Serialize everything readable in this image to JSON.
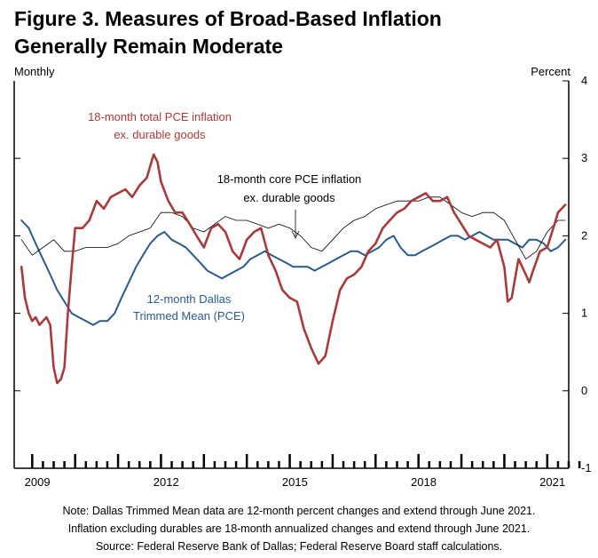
{
  "title_line1": "Figure 3. Measures of Broad-Based Inflation",
  "title_line2": "Generally Remain Moderate",
  "notes": [
    "Note:  Dallas Trimmed Mean data are 12-month percent changes and extend through June 2021.",
    "Inflation excluding durables are 18-month annualized changes and extend through June 2021.",
    "Source:  Federal Reserve Bank of Dallas; Federal Reserve Board staff calculations."
  ],
  "colors": {
    "total": "#a83a3a",
    "core": "#000000",
    "dallas": "#2a5a8a"
  },
  "chart_data": {
    "type": "line",
    "title": "Figure 3. Measures of Broad-Based Inflation Generally Remain Moderate",
    "left_label": "Monthly",
    "right_label": "Percent",
    "xlim": [
      2008.58,
      2021.5
    ],
    "ylim": [
      -1,
      4
    ],
    "yticks": [
      -1,
      0,
      1,
      2,
      3,
      4
    ],
    "ytick_labels": [
      "-1",
      "0",
      "1",
      "2",
      "3",
      "4"
    ],
    "xticks": [
      2009,
      2012,
      2015,
      2018,
      2021
    ],
    "xtick_labels": [
      "2009",
      "2012",
      "2015",
      "2018",
      "2021"
    ],
    "annotations": {
      "total": [
        "18-month total PCE inflation",
        "ex. durable goods"
      ],
      "core": [
        "18-month core PCE inflation",
        "ex. durable goods"
      ],
      "dallas": [
        "12-month Dallas",
        "Trimmed Mean (PCE)"
      ]
    },
    "series": [
      {
        "name": "18-month total PCE inflation ex. durable goods",
        "key": "total",
        "x": [
          2008.75,
          2008.83,
          2008.92,
          2009.0,
          2009.08,
          2009.17,
          2009.25,
          2009.33,
          2009.42,
          2009.5,
          2009.58,
          2009.67,
          2009.75,
          2009.83,
          2009.92,
          2010.0,
          2010.17,
          2010.33,
          2010.5,
          2010.67,
          2010.83,
          2011.0,
          2011.17,
          2011.33,
          2011.5,
          2011.67,
          2011.83,
          2011.92,
          2012.0,
          2012.17,
          2012.33,
          2012.5,
          2012.67,
          2012.83,
          2013.0,
          2013.17,
          2013.33,
          2013.5,
          2013.67,
          2013.83,
          2014.0,
          2014.17,
          2014.33,
          2014.5,
          2014.67,
          2014.83,
          2015.0,
          2015.17,
          2015.33,
          2015.5,
          2015.67,
          2015.83,
          2016.0,
          2016.17,
          2016.33,
          2016.5,
          2016.67,
          2016.83,
          2017.0,
          2017.17,
          2017.33,
          2017.5,
          2017.67,
          2017.83,
          2018.0,
          2018.17,
          2018.33,
          2018.5,
          2018.67,
          2018.83,
          2019.0,
          2019.17,
          2019.33,
          2019.5,
          2019.67,
          2019.83,
          2020.0,
          2020.08,
          2020.17,
          2020.33,
          2020.5,
          2020.58,
          2020.67,
          2020.83,
          2021.0,
          2021.17,
          2021.25,
          2021.42
        ],
        "y": [
          1.6,
          1.2,
          1.0,
          0.9,
          0.95,
          0.85,
          0.9,
          0.95,
          0.85,
          0.3,
          0.1,
          0.15,
          0.3,
          1.0,
          1.6,
          2.1,
          2.1,
          2.2,
          2.45,
          2.35,
          2.5,
          2.55,
          2.6,
          2.5,
          2.65,
          2.75,
          3.05,
          2.95,
          2.7,
          2.45,
          2.3,
          2.3,
          2.15,
          2.0,
          1.85,
          2.1,
          2.15,
          2.05,
          1.8,
          1.7,
          1.95,
          2.05,
          2.1,
          1.75,
          1.55,
          1.3,
          1.2,
          1.15,
          0.8,
          0.55,
          0.35,
          0.45,
          0.9,
          1.3,
          1.45,
          1.5,
          1.6,
          1.8,
          1.9,
          2.1,
          2.2,
          2.3,
          2.35,
          2.45,
          2.5,
          2.55,
          2.45,
          2.45,
          2.5,
          2.3,
          2.15,
          2.0,
          1.95,
          1.9,
          1.85,
          1.95,
          1.6,
          1.15,
          1.2,
          1.7,
          1.5,
          1.4,
          1.55,
          1.8,
          1.85,
          2.15,
          2.3,
          2.4
        ]
      },
      {
        "name": "18-month core PCE inflation ex. durable goods",
        "key": "core",
        "x": [
          2008.75,
          2009.0,
          2009.25,
          2009.5,
          2009.75,
          2010.0,
          2010.25,
          2010.5,
          2010.75,
          2011.0,
          2011.25,
          2011.5,
          2011.75,
          2012.0,
          2012.25,
          2012.5,
          2012.75,
          2013.0,
          2013.25,
          2013.5,
          2013.75,
          2014.0,
          2014.25,
          2014.5,
          2014.75,
          2015.0,
          2015.25,
          2015.5,
          2015.75,
          2016.0,
          2016.25,
          2016.5,
          2016.75,
          2017.0,
          2017.25,
          2017.5,
          2017.75,
          2018.0,
          2018.25,
          2018.5,
          2018.75,
          2019.0,
          2019.25,
          2019.5,
          2019.75,
          2020.0,
          2020.25,
          2020.5,
          2020.75,
          2021.0,
          2021.25,
          2021.42
        ],
        "y": [
          1.95,
          1.75,
          1.85,
          1.95,
          1.8,
          1.8,
          1.85,
          1.85,
          1.85,
          1.9,
          2.0,
          2.05,
          2.1,
          2.3,
          2.3,
          2.25,
          2.1,
          2.05,
          2.15,
          2.25,
          2.2,
          2.2,
          2.15,
          2.1,
          2.15,
          2.1,
          2.0,
          1.85,
          1.8,
          1.95,
          2.1,
          2.2,
          2.25,
          2.35,
          2.4,
          2.45,
          2.45,
          2.45,
          2.5,
          2.5,
          2.4,
          2.3,
          2.25,
          2.3,
          2.3,
          2.2,
          1.95,
          1.7,
          1.8,
          2.05,
          2.2,
          2.2
        ]
      },
      {
        "name": "12-month Dallas Trimmed Mean (PCE)",
        "key": "dallas",
        "x": [
          2008.75,
          2008.92,
          2009.08,
          2009.25,
          2009.42,
          2009.58,
          2009.75,
          2009.92,
          2010.08,
          2010.25,
          2010.42,
          2010.58,
          2010.75,
          2010.92,
          2011.08,
          2011.25,
          2011.42,
          2011.58,
          2011.75,
          2011.92,
          2012.08,
          2012.25,
          2012.42,
          2012.58,
          2012.75,
          2012.92,
          2013.08,
          2013.25,
          2013.42,
          2013.58,
          2013.75,
          2013.92,
          2014.08,
          2014.25,
          2014.42,
          2014.58,
          2014.75,
          2014.92,
          2015.08,
          2015.25,
          2015.42,
          2015.58,
          2015.75,
          2015.92,
          2016.08,
          2016.25,
          2016.42,
          2016.58,
          2016.75,
          2016.92,
          2017.08,
          2017.25,
          2017.42,
          2017.58,
          2017.75,
          2017.92,
          2018.08,
          2018.25,
          2018.42,
          2018.58,
          2018.75,
          2018.92,
          2019.08,
          2019.25,
          2019.42,
          2019.58,
          2019.75,
          2019.92,
          2020.08,
          2020.25,
          2020.42,
          2020.58,
          2020.75,
          2020.92,
          2021.08,
          2021.25,
          2021.42
        ],
        "y": [
          2.2,
          2.1,
          1.9,
          1.7,
          1.5,
          1.3,
          1.15,
          1.0,
          0.95,
          0.9,
          0.85,
          0.9,
          0.9,
          1.0,
          1.2,
          1.4,
          1.6,
          1.75,
          1.9,
          2.0,
          2.05,
          1.95,
          1.9,
          1.85,
          1.75,
          1.65,
          1.55,
          1.5,
          1.45,
          1.5,
          1.55,
          1.6,
          1.7,
          1.75,
          1.8,
          1.75,
          1.7,
          1.65,
          1.6,
          1.6,
          1.6,
          1.55,
          1.6,
          1.65,
          1.7,
          1.75,
          1.8,
          1.8,
          1.75,
          1.8,
          1.85,
          1.95,
          2.0,
          1.85,
          1.75,
          1.75,
          1.8,
          1.85,
          1.9,
          1.95,
          2.0,
          2.0,
          1.95,
          2.0,
          2.05,
          2.0,
          1.95,
          1.95,
          1.95,
          1.9,
          1.85,
          1.95,
          1.95,
          1.9,
          1.8,
          1.85,
          1.95
        ]
      }
    ]
  }
}
